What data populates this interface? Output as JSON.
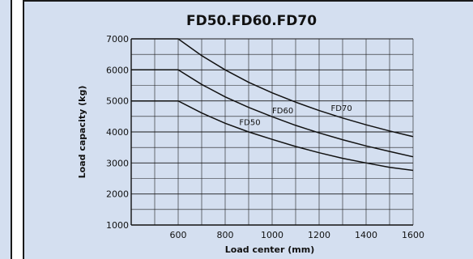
{
  "chart_data": {
    "type": "line",
    "title": "FD50.FD60.FD70",
    "xlabel": "Load center  (mm)",
    "ylabel": "Load capacity (kg)",
    "xlim": [
      400,
      1600
    ],
    "ylim": [
      1000,
      7000
    ],
    "x_ticks": [
      "600",
      "800",
      "1000",
      "1200",
      "1400",
      "1600"
    ],
    "y_ticks": [
      "1000",
      "2000",
      "3000",
      "4000",
      "5000",
      "6000",
      "7000"
    ],
    "grid": true,
    "series": [
      {
        "name": "FD50",
        "x": [
          400,
          600,
          700,
          800,
          900,
          1000,
          1100,
          1200,
          1300,
          1400,
          1500,
          1600
        ],
        "y": [
          5000,
          5000,
          4610,
          4280,
          4000,
          3760,
          3530,
          3330,
          3150,
          3000,
          2860,
          2760
        ]
      },
      {
        "name": "FD60",
        "x": [
          400,
          600,
          700,
          800,
          900,
          1000,
          1100,
          1200,
          1300,
          1400,
          1500,
          1600
        ],
        "y": [
          6000,
          6000,
          5530,
          5130,
          4790,
          4490,
          4210,
          3970,
          3750,
          3550,
          3370,
          3200
        ]
      },
      {
        "name": "FD70",
        "x": [
          400,
          600,
          700,
          800,
          900,
          1000,
          1100,
          1200,
          1300,
          1400,
          1500,
          1600
        ],
        "y": [
          7000,
          7000,
          6460,
          6000,
          5600,
          5260,
          4960,
          4690,
          4450,
          4230,
          4030,
          3850
        ]
      }
    ]
  }
}
